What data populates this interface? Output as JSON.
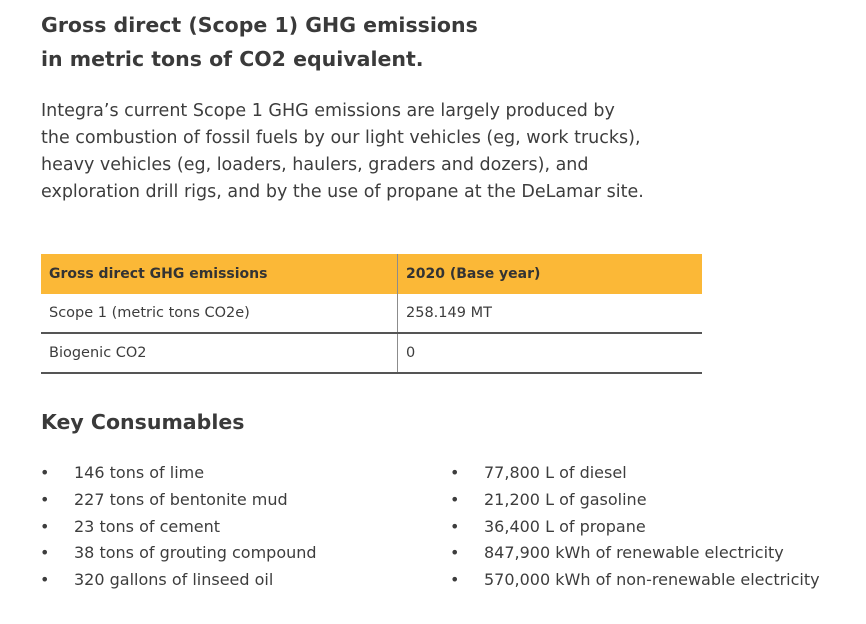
{
  "heading": {
    "line1": "Gross direct (Scope 1) GHG emissions",
    "line2": "in metric tons of CO2 equivalent."
  },
  "intro": {
    "line1": "Integra’s current Scope 1 GHG emissions are largely produced by",
    "line2": "the combustion of fossil fuels by our light vehicles (eg, work trucks),",
    "line3": "heavy vehicles (eg, loaders, haulers, graders and dozers), and",
    "line4": "exploration drill rigs, and by the use of propane at the DeLamar site."
  },
  "table": {
    "headers": [
      "Gross direct GHG emissions",
      "2020 (Base year)"
    ],
    "rows": [
      [
        "Scope 1 (metric tons CO2e)",
        "258.149 MT"
      ],
      [
        "Biogenic CO2",
        "0"
      ]
    ],
    "header_color": "#fbb837"
  },
  "consumables": {
    "title": "Key Consumables",
    "bullet": "•",
    "left": [
      "146 tons of lime",
      "227 tons of bentonite mud",
      "23 tons of cement",
      "38 tons of grouting compound",
      "320 gallons of linseed oil"
    ],
    "right": [
      "77,800 L of diesel",
      "21,200 L of gasoline",
      "36,400 L of propane",
      "847,900 kWh of renewable electricity",
      "570,000 kWh of non-renewable electricity"
    ]
  }
}
